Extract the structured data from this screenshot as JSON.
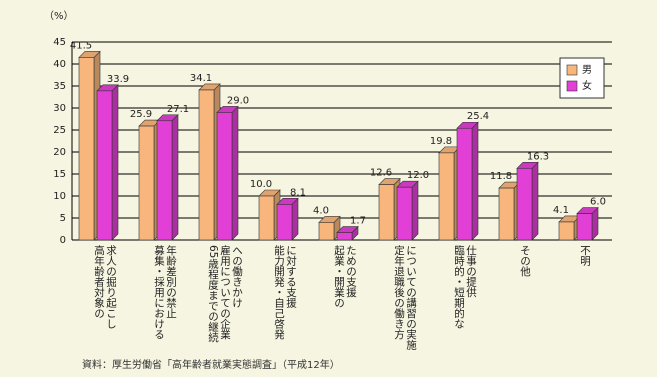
{
  "chart_data": {
    "type": "bar",
    "y_unit_label": "（%）",
    "categories": [
      "高年齢者対象の\n求人の掘り起こし",
      "募集・採用における\n年齢差別の禁止",
      "65歳程度までの継続\n雇用についての企業\nへの働きかけ",
      "能力開発・自己啓発\nに対する支援",
      "起業・開業の\nための支援",
      "定年退職後の働き方\nについての講習の実施",
      "臨時的・短期的な\n仕事の提供",
      "その他",
      "不明"
    ],
    "series": [
      {
        "name": "男",
        "color": "#f8b57c",
        "values": [
          41.5,
          25.9,
          34.1,
          10.0,
          4.0,
          12.6,
          19.8,
          11.8,
          4.1
        ],
        "value_labels": [
          "41.5",
          "25.9",
          "34.1",
          "10.0",
          "4.0",
          "12.6",
          "19.8",
          "11.8",
          "4.1"
        ]
      },
      {
        "name": "女",
        "color": "#e23fd6",
        "values": [
          33.9,
          27.1,
          29.0,
          8.1,
          1.7,
          12.0,
          25.4,
          16.3,
          6.0
        ],
        "value_labels": [
          "33.9",
          "27.1",
          "29.0",
          "8.1",
          "1.7",
          "12.0",
          "25.4",
          "16.3",
          "6.0"
        ]
      }
    ],
    "ylim": [
      0,
      45
    ],
    "yticks": [
      0,
      5,
      10,
      15,
      20,
      25,
      30,
      35,
      40,
      45
    ],
    "grid": true,
    "legend": "upper right",
    "source": "資料：厚生労働省「高年齢者就業実態調査」（平成12年）"
  }
}
